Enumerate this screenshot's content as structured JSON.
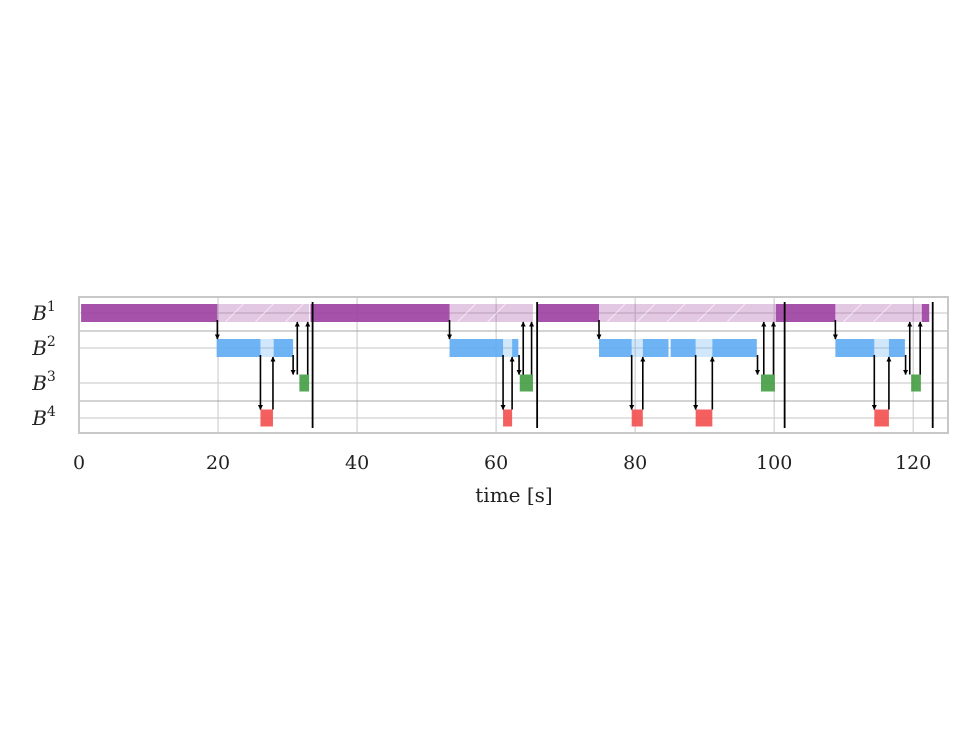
{
  "chart_data": {
    "type": "gantt",
    "xlabel": "time [s]",
    "xlim": [
      0,
      125
    ],
    "xticks": [
      "0",
      "20",
      "40",
      "60",
      "80",
      "100",
      "120"
    ],
    "grid": true,
    "rows": [
      {
        "base": "B",
        "sup": "1",
        "color": "#9b3a9e"
      },
      {
        "base": "B",
        "sup": "2",
        "color": "#5aaaf2"
      },
      {
        "base": "B",
        "sup": "3",
        "color": "#3d9a3d"
      },
      {
        "base": "B",
        "sup": "4",
        "color": "#f24a4a"
      }
    ],
    "active_bars": [
      {
        "row": 1,
        "start": 0.3,
        "end": 19.9
      },
      {
        "row": 1,
        "start": 33.3,
        "end": 53.3
      },
      {
        "row": 1,
        "start": 65.8,
        "end": 74.8
      },
      {
        "row": 1,
        "start": 100.2,
        "end": 108.8
      },
      {
        "row": 1,
        "start": 121.2,
        "end": 122.3
      },
      {
        "row": 2,
        "start": 19.8,
        "end": 26.1
      },
      {
        "row": 2,
        "start": 28.0,
        "end": 30.8
      },
      {
        "row": 2,
        "start": 53.3,
        "end": 61.0
      },
      {
        "row": 2,
        "start": 62.3,
        "end": 63.2
      },
      {
        "row": 2,
        "start": 74.8,
        "end": 79.5
      },
      {
        "row": 2,
        "start": 81.1,
        "end": 84.8
      },
      {
        "row": 2,
        "start": 85.1,
        "end": 88.7
      },
      {
        "row": 2,
        "start": 91.1,
        "end": 97.5
      },
      {
        "row": 2,
        "start": 108.8,
        "end": 114.4
      },
      {
        "row": 2,
        "start": 116.5,
        "end": 118.8
      },
      {
        "row": 3,
        "start": 31.7,
        "end": 33.1
      },
      {
        "row": 3,
        "start": 63.4,
        "end": 65.3
      },
      {
        "row": 3,
        "start": 98.1,
        "end": 100.1
      },
      {
        "row": 3,
        "start": 119.7,
        "end": 121.1
      },
      {
        "row": 4,
        "start": 26.1,
        "end": 27.9
      },
      {
        "row": 4,
        "start": 61.0,
        "end": 62.3
      },
      {
        "row": 4,
        "start": 79.5,
        "end": 81.1
      },
      {
        "row": 4,
        "start": 88.7,
        "end": 91.1
      },
      {
        "row": 4,
        "start": 114.4,
        "end": 116.5
      }
    ],
    "waiting_bars": [
      {
        "row": 1,
        "start": 19.9,
        "end": 33.1
      },
      {
        "row": 1,
        "start": 53.3,
        "end": 65.3
      },
      {
        "row": 1,
        "start": 74.8,
        "end": 100.1
      },
      {
        "row": 1,
        "start": 108.8,
        "end": 121.1
      },
      {
        "row": 2,
        "start": 26.1,
        "end": 28.0
      },
      {
        "row": 2,
        "start": 61.0,
        "end": 62.3
      },
      {
        "row": 2,
        "start": 79.5,
        "end": 81.1
      },
      {
        "row": 2,
        "start": 88.7,
        "end": 91.1
      },
      {
        "row": 2,
        "start": 114.4,
        "end": 116.5
      }
    ],
    "down_arrows": [
      {
        "x": 19.9,
        "from": 1,
        "to": 2
      },
      {
        "x": 26.1,
        "from": 2,
        "to": 4
      },
      {
        "x": 30.8,
        "from": 2,
        "to": 3
      },
      {
        "x": 53.3,
        "from": 1,
        "to": 2
      },
      {
        "x": 61.0,
        "from": 2,
        "to": 4
      },
      {
        "x": 63.3,
        "from": 2,
        "to": 3
      },
      {
        "x": 74.8,
        "from": 1,
        "to": 2
      },
      {
        "x": 79.5,
        "from": 2,
        "to": 4
      },
      {
        "x": 88.7,
        "from": 2,
        "to": 4
      },
      {
        "x": 97.6,
        "from": 2,
        "to": 3
      },
      {
        "x": 108.8,
        "from": 1,
        "to": 2
      },
      {
        "x": 114.4,
        "from": 2,
        "to": 4
      },
      {
        "x": 118.9,
        "from": 2,
        "to": 3
      }
    ],
    "up_arrows": [
      {
        "x": 27.9,
        "from": 4,
        "to": 2
      },
      {
        "x": 31.4,
        "from": 3,
        "to": 1
      },
      {
        "x": 32.9,
        "from": 3,
        "to": 1
      },
      {
        "x": 62.3,
        "from": 4,
        "to": 2
      },
      {
        "x": 63.9,
        "from": 3,
        "to": 1
      },
      {
        "x": 65.1,
        "from": 3,
        "to": 1
      },
      {
        "x": 81.1,
        "from": 4,
        "to": 2
      },
      {
        "x": 91.1,
        "from": 4,
        "to": 2
      },
      {
        "x": 98.5,
        "from": 3,
        "to": 1
      },
      {
        "x": 99.9,
        "from": 3,
        "to": 1
      },
      {
        "x": 116.5,
        "from": 4,
        "to": 2
      },
      {
        "x": 119.5,
        "from": 3,
        "to": 1
      },
      {
        "x": 121.0,
        "from": 3,
        "to": 1
      }
    ],
    "cycle_ends": [
      33.6,
      65.9,
      101.5,
      122.8
    ]
  }
}
